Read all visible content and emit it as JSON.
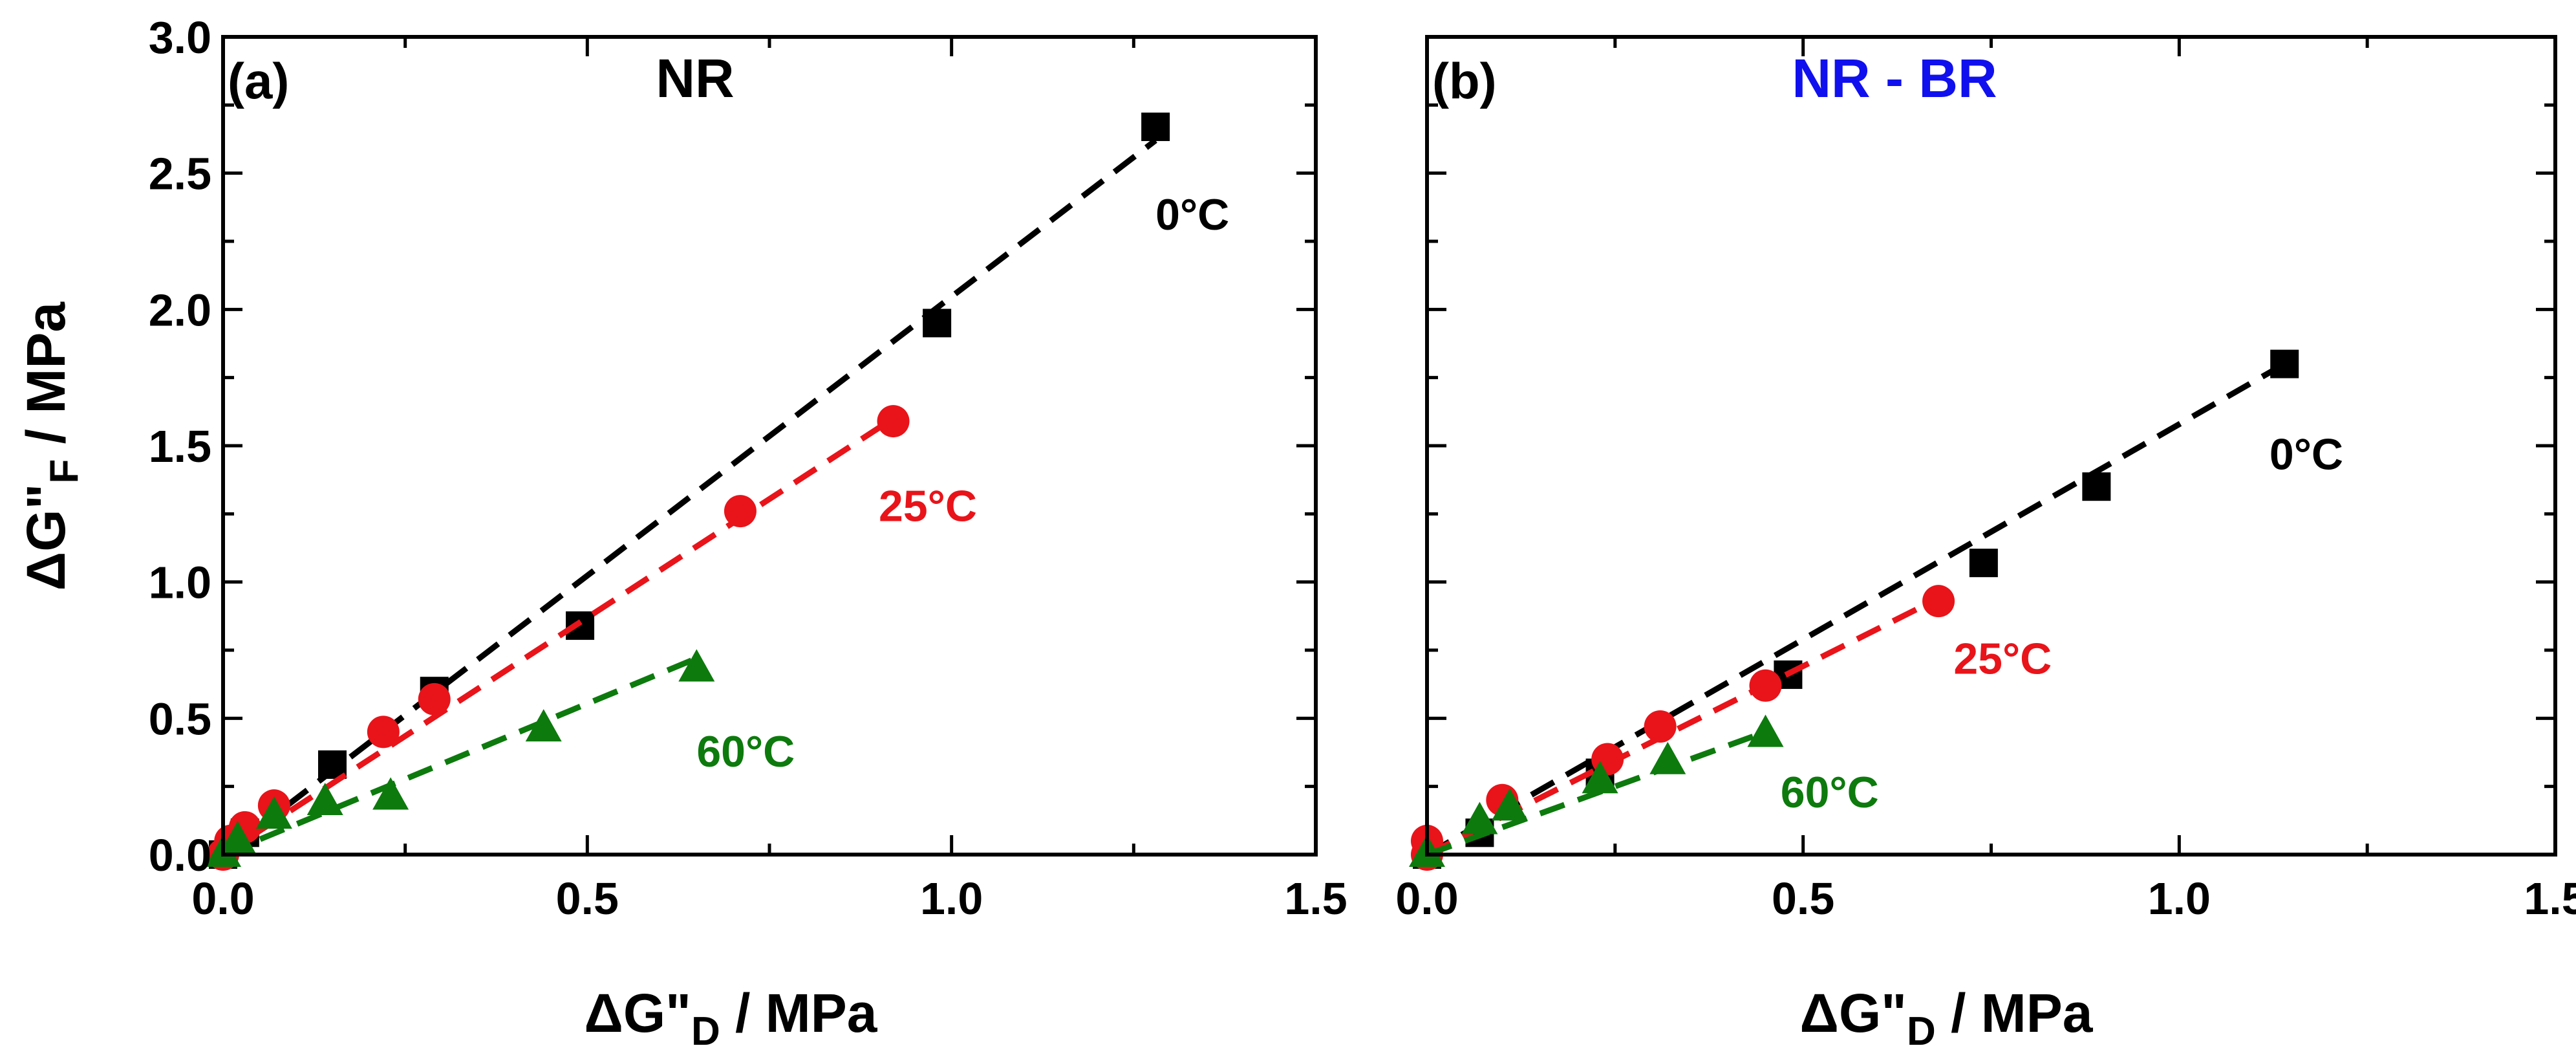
{
  "chart_data": [
    {
      "type": "scatter",
      "panel_label": "(a)",
      "title": "NR",
      "title_color": "#000000",
      "xlabel": "ΔG\"D / MPa",
      "xlabel_main": "ΔG\"",
      "xlabel_sub": "D",
      "xlabel_tail": " / MPa",
      "ylabel": "ΔG\"F / MPa",
      "ylabel_main": "ΔG\"",
      "ylabel_sub": "F",
      "ylabel_tail": " / MPa",
      "xlim": [
        0,
        1.5
      ],
      "ylim": [
        0,
        3.0
      ],
      "xticks": [
        "0.0",
        "0.5",
        "1.0",
        "1.5"
      ],
      "yticks": [
        "0.0",
        "0.5",
        "1.0",
        "1.5",
        "2.0",
        "2.5",
        "3.0"
      ],
      "series": [
        {
          "name": "0°C",
          "label": "0°C",
          "color": "#000000",
          "marker": "square",
          "x": [
            0.0,
            0.03,
            0.15,
            0.29,
            0.49,
            0.98,
            1.28
          ],
          "y": [
            0.0,
            0.08,
            0.33,
            0.6,
            0.84,
            1.95,
            2.67
          ],
          "fit": [
            [
              0.0,
              0.0
            ],
            [
              1.28,
              2.62
            ]
          ],
          "label_pos": [
            1.28,
            2.35
          ]
        },
        {
          "name": "25°C",
          "label": "25°C",
          "color": "#e8141a",
          "marker": "circle",
          "x": [
            0.0,
            0.01,
            0.03,
            0.07,
            0.22,
            0.29,
            0.71,
            0.92
          ],
          "y": [
            0.0,
            0.05,
            0.1,
            0.18,
            0.45,
            0.57,
            1.26,
            1.59
          ],
          "fit": [
            [
              0.0,
              0.0
            ],
            [
              0.92,
              1.6
            ]
          ],
          "label_pos": [
            0.9,
            1.28
          ]
        },
        {
          "name": "60°C",
          "label": "60°C",
          "color": "#0d7a0d",
          "marker": "triangle",
          "x": [
            0.0,
            0.02,
            0.07,
            0.14,
            0.23,
            0.44,
            0.65
          ],
          "y": [
            0.0,
            0.05,
            0.14,
            0.19,
            0.21,
            0.46,
            0.68
          ],
          "fit": [
            [
              0.0,
              0.0
            ],
            [
              0.65,
              0.72
            ]
          ],
          "label_pos": [
            0.65,
            0.38
          ]
        }
      ]
    },
    {
      "type": "scatter",
      "panel_label": "(b)",
      "title": "NR - BR",
      "title_color": "#1010ee",
      "xlabel": "ΔG\"D / MPa",
      "xlabel_main": "ΔG\"",
      "xlabel_sub": "D",
      "xlabel_tail": " / MPa",
      "xlim": [
        0,
        1.5
      ],
      "ylim": [
        0,
        3.0
      ],
      "xticks": [
        "0.0",
        "0.5",
        "1.0",
        "1.5"
      ],
      "yticks": [
        "0.0",
        "0.5",
        "1.0",
        "1.5",
        "2.0",
        "2.5",
        "3.0"
      ],
      "series": [
        {
          "name": "0°C",
          "label": "0°C",
          "color": "#000000",
          "marker": "square",
          "x": [
            0.0,
            0.07,
            0.23,
            0.48,
            0.74,
            0.89,
            1.14
          ],
          "y": [
            0.0,
            0.08,
            0.3,
            0.66,
            1.07,
            1.35,
            1.8
          ],
          "fit": [
            [
              0.0,
              0.0
            ],
            [
              1.14,
              1.8
            ]
          ],
          "label_pos": [
            1.12,
            1.47
          ]
        },
        {
          "name": "25°C",
          "label": "25°C",
          "color": "#e8141a",
          "marker": "circle",
          "x": [
            0.0,
            0.0,
            0.1,
            0.24,
            0.31,
            0.45,
            0.68
          ],
          "y": [
            0.0,
            0.05,
            0.2,
            0.35,
            0.47,
            0.62,
            0.93
          ],
          "fit": [
            [
              0.0,
              0.0
            ],
            [
              0.68,
              0.94
            ]
          ],
          "label_pos": [
            0.7,
            0.72
          ]
        },
        {
          "name": "60°C",
          "label": "60°C",
          "color": "#0d7a0d",
          "marker": "triangle",
          "x": [
            0.0,
            0.07,
            0.11,
            0.23,
            0.32,
            0.45
          ],
          "y": [
            0.0,
            0.12,
            0.17,
            0.27,
            0.34,
            0.44
          ],
          "fit": [
            [
              0.0,
              0.0
            ],
            [
              0.45,
              0.45
            ]
          ],
          "label_pos": [
            0.47,
            0.23
          ]
        }
      ]
    }
  ]
}
